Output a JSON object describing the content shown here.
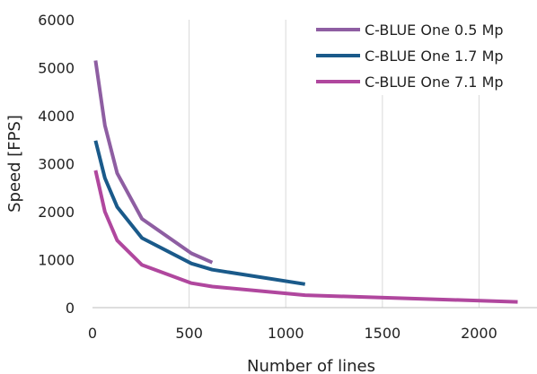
{
  "chart_data": {
    "type": "line",
    "xlabel": "Number of lines",
    "ylabel": "Speed [FPS]",
    "xlim": [
      0,
      2300
    ],
    "ylim": [
      0,
      6000
    ],
    "xticks": [
      0,
      500,
      1000,
      1500,
      2000
    ],
    "yticks": [
      0,
      1000,
      2000,
      3000,
      4000,
      5000,
      6000
    ],
    "xtick_labels": [
      "0",
      "500",
      "1000",
      "1500",
      "2000"
    ],
    "ytick_labels": [
      "0",
      "1000",
      "2000",
      "3000",
      "4000",
      "5000",
      "6000"
    ],
    "grid": "vertical",
    "legend_position": "top-right",
    "series": [
      {
        "name": "C-BLUE One 0.5 Mp",
        "color": "#8e5ea2",
        "x": [
          16,
          64,
          128,
          256,
          512,
          620
        ],
        "y": [
          5150,
          3800,
          2800,
          1850,
          1130,
          940
        ]
      },
      {
        "name": "C-BLUE One 1.7 Mp",
        "color": "#1a5a8a",
        "x": [
          16,
          64,
          128,
          256,
          512,
          620,
          1100
        ],
        "y": [
          3480,
          2700,
          2100,
          1450,
          920,
          790,
          490
        ]
      },
      {
        "name": "C-BLUE One 7.1 Mp",
        "color": "#b0479e",
        "x": [
          16,
          64,
          128,
          256,
          512,
          620,
          1100,
          2200
        ],
        "y": [
          2860,
          2000,
          1400,
          890,
          510,
          440,
          260,
          120
        ]
      }
    ]
  }
}
